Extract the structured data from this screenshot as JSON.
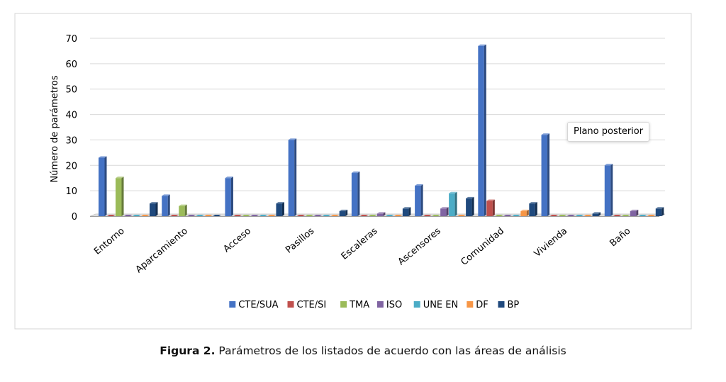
{
  "chart_data": {
    "type": "bar",
    "title": "",
    "xlabel": "",
    "ylabel": "Número de parámetros",
    "ylim": [
      0,
      70
    ],
    "yticks": [
      0,
      10,
      20,
      30,
      40,
      50,
      60,
      70
    ],
    "grid": true,
    "legend_position": "bottom",
    "rendering": "3d-clustered-bar",
    "categories": [
      "Entorno",
      "Aparcamiento",
      "Acceso",
      "Pasillos",
      "Escaleras",
      "Ascensores",
      "Comunidad",
      "Vivienda",
      "Baño"
    ],
    "series": [
      {
        "name": "CTE/SUA",
        "color": "#4472C4",
        "values": [
          23,
          8,
          15,
          30,
          17,
          12,
          67,
          32,
          20
        ]
      },
      {
        "name": "CTE/SI",
        "color": "#C0504D",
        "values": [
          0,
          0,
          0,
          0,
          0,
          0,
          6,
          0,
          0
        ]
      },
      {
        "name": "TMA",
        "color": "#9BBB59",
        "values": [
          15,
          4,
          0,
          0,
          0,
          0,
          0,
          0,
          0
        ]
      },
      {
        "name": "ISO",
        "color": "#8064A2",
        "values": [
          0,
          0,
          0,
          0,
          1,
          3,
          0,
          0,
          2
        ]
      },
      {
        "name": "UNE EN",
        "color": "#4BACC6",
        "values": [
          0,
          0,
          0,
          0,
          0,
          9,
          0,
          0,
          0
        ]
      },
      {
        "name": "DF",
        "color": "#F79646",
        "values": [
          0,
          0,
          0,
          0,
          0,
          0,
          2,
          0,
          0
        ]
      },
      {
        "name": "BP",
        "color": "#1F497D",
        "values": [
          5,
          0,
          5,
          2,
          3,
          7,
          5,
          1,
          3
        ]
      }
    ]
  },
  "tooltip": {
    "text": "Plano posterior"
  },
  "caption": {
    "label": "Figura 2.",
    "text": "Parámetros de los listados de acuerdo con las áreas de análisis"
  }
}
